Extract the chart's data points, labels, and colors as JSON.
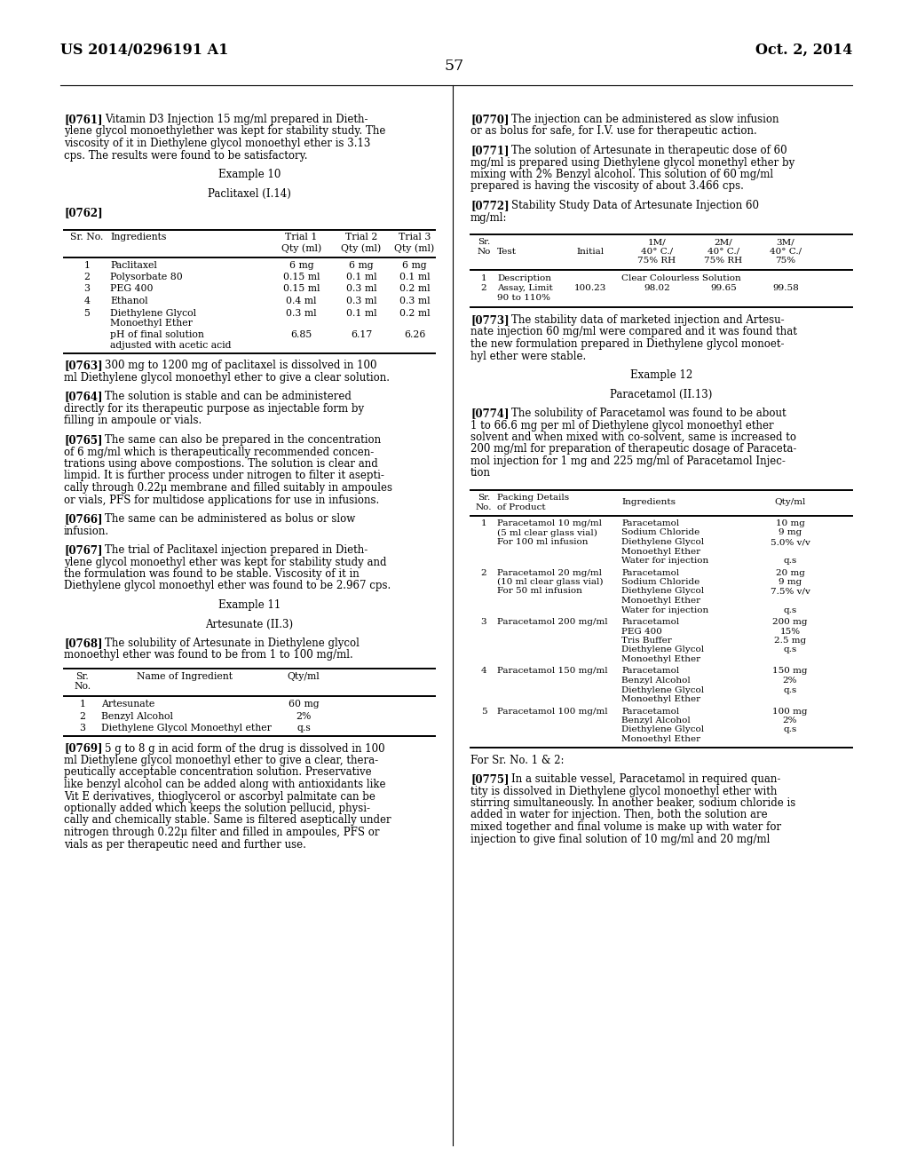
{
  "page_header_left": "US 2014/0296191 A1",
  "page_header_right": "Oct. 2, 2014",
  "page_number": "57",
  "bg_color": "#ffffff",
  "fs_body": 8.5,
  "fs_header": 10.5,
  "fs_table": 7.8,
  "table1": {
    "headers": [
      "Sr. No.",
      "Ingredients",
      "Trial 1\nQty (ml)",
      "Trial 2\nQty (ml)",
      "Trial 3\nQty (ml)"
    ],
    "rows": [
      [
        "1",
        "Paclitaxel",
        "6 mg",
        "6 mg",
        "6 mg"
      ],
      [
        "2",
        "Polysorbate 80",
        "0.15 ml",
        "0.1 ml",
        "0.1 ml"
      ],
      [
        "3",
        "PEG 400",
        "0.15 ml",
        "0.3 ml",
        "0.2 ml"
      ],
      [
        "4",
        "Ethanol",
        "0.4 ml",
        "0.3 ml",
        "0.3 ml"
      ],
      [
        "5",
        "Diethylene Glycol\nMonoethyl Ether",
        "0.3 ml",
        "0.1 ml",
        "0.2 ml"
      ],
      [
        "",
        "pH of final solution\nadjusted with acetic acid",
        "6.85",
        "6.17",
        "6.26"
      ]
    ]
  },
  "table2": {
    "headers": [
      "Sr.\nNo.",
      "Name of Ingredient",
      "Qty/ml"
    ],
    "rows": [
      [
        "1",
        "Artesunate",
        "60 mg"
      ],
      [
        "2",
        "Benzyl Alcohol",
        "2%"
      ],
      [
        "3",
        "Diethylene Glycol Monoethyl ether",
        "q.s"
      ]
    ]
  },
  "table3": {
    "headers": [
      "Sr.\nNo",
      "Test",
      "Initial",
      "1M/\n40° C./\n75% RH",
      "2M/\n40° C./\n75% RH",
      "3M/\n40° C./\n75%"
    ],
    "rows_sr": [
      "1",
      "2"
    ],
    "rows_test": [
      "Description",
      "Assay, Limit\n90 to 110%"
    ],
    "rows_initial": [
      "",
      "100.23"
    ],
    "rows_data": [
      "Clear Colourless Solution",
      "98.02",
      "99.65",
      "99.58"
    ]
  },
  "table4": {
    "headers": [
      "Sr.\nNo.",
      "Packing Details\nof Product",
      "Ingredients",
      "Qty/ml"
    ],
    "rows": [
      {
        "sr": "1",
        "packing": [
          "Paracetamol 10 mg/ml",
          "(5 ml clear glass vial)",
          "For 100 ml infusion"
        ],
        "ingredients": [
          "Paracetamol",
          "Sodium Chloride",
          "Diethylene Glycol",
          "Monoethyl Ether",
          "Water for injection"
        ],
        "qty": [
          "10 mg",
          "9 mg",
          "5.0% v/v",
          "",
          "q.s"
        ]
      },
      {
        "sr": "2",
        "packing": [
          "Paracetamol 20 mg/ml",
          "(10 ml clear glass vial)",
          "For 50 ml infusion"
        ],
        "ingredients": [
          "Paracetamol",
          "Sodium Chloride",
          "Diethylene Glycol",
          "Monoethyl Ether",
          "Water for injection"
        ],
        "qty": [
          "20 mg",
          "9 mg",
          "7.5% v/v",
          "",
          "q.s"
        ]
      },
      {
        "sr": "3",
        "packing": [
          "Paracetamol 200 mg/ml"
        ],
        "ingredients": [
          "Paracetamol",
          "PEG 400",
          "Tris Buffer",
          "Diethylene Glycol",
          "Monoethyl Ether"
        ],
        "qty": [
          "200 mg",
          "15%",
          "2.5 mg",
          "q.s",
          ""
        ]
      },
      {
        "sr": "4",
        "packing": [
          "Paracetamol 150 mg/ml"
        ],
        "ingredients": [
          "Paracetamol",
          "Benzyl Alcohol",
          "Diethylene Glycol",
          "Monoethyl Ether"
        ],
        "qty": [
          "150 mg",
          "2%",
          "q.s",
          ""
        ]
      },
      {
        "sr": "5",
        "packing": [
          "Paracetamol 100 mg/ml"
        ],
        "ingredients": [
          "Paracetamol",
          "Benzyl Alcohol",
          "Diethylene Glycol",
          "Monoethyl Ether"
        ],
        "qty": [
          "100 mg",
          "2%",
          "q.s",
          ""
        ]
      }
    ]
  }
}
